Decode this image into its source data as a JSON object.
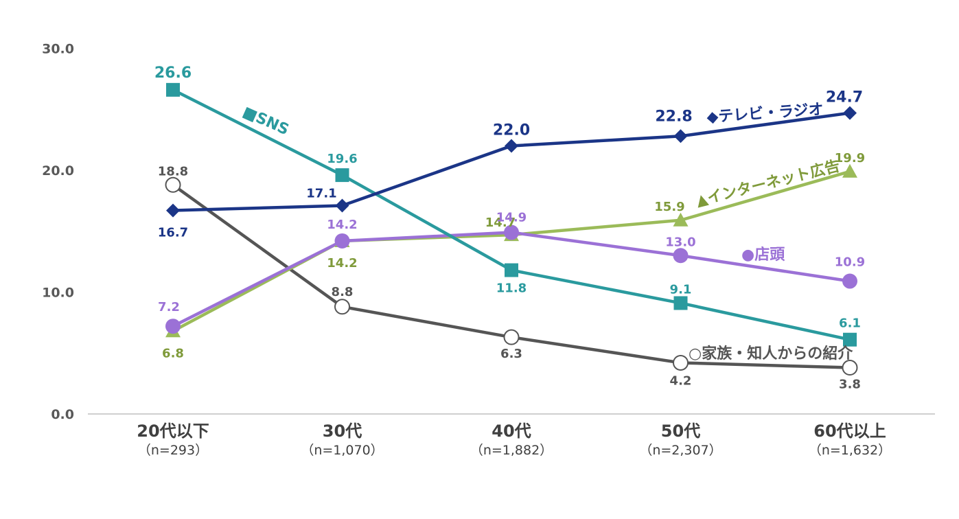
{
  "chart_data": {
    "type": "line",
    "categories": [
      "20代以下",
      "30代",
      "40代",
      "50代",
      "60代以上"
    ],
    "category_notes": [
      "（n=293）",
      "（n=1,070）",
      "（n=1,882）",
      "（n=2,307）",
      "（n=1,632）"
    ],
    "ylim": [
      0,
      30
    ],
    "yticks": [
      "0.0",
      "10.0",
      "20.0",
      "30.0"
    ],
    "series": [
      {
        "name": "SNS",
        "legend_label": "■SNS",
        "color": "#2A9A9E",
        "marker": "square",
        "values": [
          26.6,
          19.6,
          11.8,
          9.1,
          6.1
        ],
        "labels": [
          "26.6",
          "19.6",
          "11.8",
          "9.1",
          "6.1"
        ]
      },
      {
        "name": "テレビ・ラジオ",
        "legend_label": "◆テレビ・ラジオ",
        "color": "#1B3587",
        "marker": "diamond",
        "values": [
          16.7,
          17.1,
          22.0,
          22.8,
          24.7
        ],
        "labels": [
          "16.7",
          "17.1",
          "22.0",
          "22.8",
          "24.7"
        ]
      },
      {
        "name": "インターネット広告",
        "legend_label": "▲インターネット広告",
        "color": "#9BBB59",
        "label_color": "#7F9A3A",
        "marker": "triangle",
        "values": [
          6.8,
          14.2,
          14.7,
          15.9,
          19.9
        ],
        "labels": [
          "6.8",
          "14.2",
          "14.7",
          "15.9",
          "19.9"
        ]
      },
      {
        "name": "店頭",
        "legend_label": "●店頭",
        "color": "#9B71D6",
        "marker": "circle",
        "values": [
          7.2,
          14.2,
          14.9,
          13.0,
          10.9
        ],
        "labels": [
          "7.2",
          "14.2",
          "14.9",
          "13.0",
          "10.9"
        ]
      },
      {
        "name": "家族・知人からの紹介",
        "legend_label": "○家族・知人からの紹介",
        "color": "#555555",
        "marker": "open-circle",
        "values": [
          18.8,
          8.8,
          6.3,
          4.2,
          3.8
        ],
        "labels": [
          "18.8",
          "8.8",
          "6.3",
          "4.2",
          "3.8"
        ]
      }
    ]
  }
}
